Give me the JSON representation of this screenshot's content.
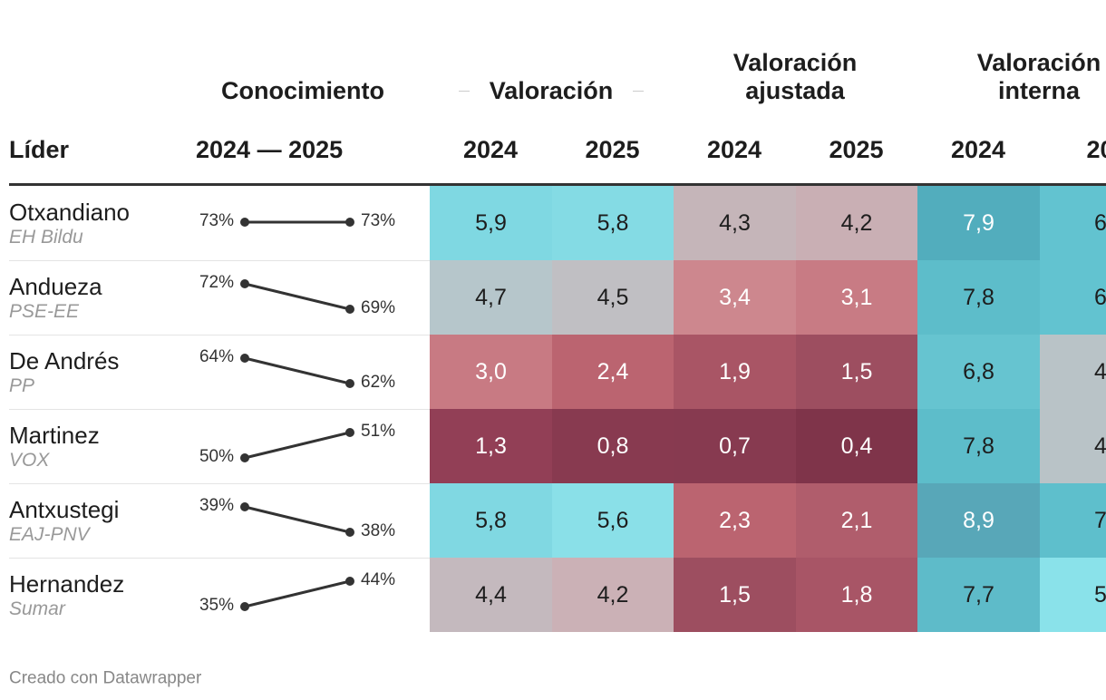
{
  "header": {
    "leader": "Líder",
    "knowledge": "Conocimiento",
    "knowledge_years": "2024 — 2025",
    "groups": [
      "Valoración",
      "Valoración ajustada",
      "Valoración interna"
    ],
    "years": [
      "2024",
      "2025",
      "2024",
      "2025",
      "2024",
      "20"
    ]
  },
  "rows": [
    {
      "leader": "Otxandiano",
      "party": "EH Bildu",
      "knowledge": {
        "values": [
          73,
          73
        ],
        "value_labels": [
          "73%",
          "73%"
        ]
      },
      "cells": [
        "5,9",
        "5,8",
        "4,3",
        "4,2",
        "7,9",
        "6"
      ],
      "colors": [
        "#7fd8e2",
        "#84dbe4",
        "#c5b5b9",
        "#c9afb4",
        "#52adbd",
        "#62c3d0"
      ]
    },
    {
      "leader": "Andueza",
      "party": "PSE-EE",
      "knowledge": {
        "values": [
          72,
          69
        ],
        "value_labels": [
          "72%",
          "69%"
        ]
      },
      "cells": [
        "4,7",
        "4,5",
        "3,4",
        "3,1",
        "7,8",
        "6"
      ],
      "colors": [
        "#b6c6cb",
        "#c0bfc3",
        "#cd878e",
        "#c87b84",
        "#5dbdca",
        "#62c3d0"
      ]
    },
    {
      "leader": "De Andrés",
      "party": "PP",
      "knowledge": {
        "values": [
          64,
          62
        ],
        "value_labels": [
          "64%",
          "62%"
        ]
      },
      "cells": [
        "3,0",
        "2,4",
        "1,9",
        "1,5",
        "6,8",
        "4"
      ],
      "colors": [
        "#c87a83",
        "#bb6470",
        "#a95565",
        "#9d4e60",
        "#66c4d0",
        "#b9c3c7"
      ]
    },
    {
      "leader": "Martinez",
      "party": "VOX",
      "knowledge": {
        "values": [
          50,
          51
        ],
        "value_labels": [
          "50%",
          "51%"
        ]
      },
      "cells": [
        "1,3",
        "0,8",
        "0,7",
        "0,4",
        "7,8",
        "4"
      ],
      "colors": [
        "#923f56",
        "#883a50",
        "#873a50",
        "#7f344a",
        "#5dbdca",
        "#b9c3c7"
      ]
    },
    {
      "leader": "Antxustegi",
      "party": "EAJ-PNV",
      "knowledge": {
        "values": [
          39,
          38
        ],
        "value_labels": [
          "39%",
          "38%"
        ]
      },
      "cells": [
        "5,8",
        "5,6",
        "2,3",
        "2,1",
        "8,9",
        "7"
      ],
      "colors": [
        "#80d8e2",
        "#8ae0e8",
        "#bb6470",
        "#b05d6c",
        "#58a7b8",
        "#5ebfcc"
      ]
    },
    {
      "leader": "Hernandez",
      "party": "Sumar",
      "knowledge": {
        "values": [
          35,
          44
        ],
        "value_labels": [
          "35%",
          "44%"
        ]
      },
      "cells": [
        "4,4",
        "4,2",
        "1,5",
        "1,8",
        "7,7",
        "5"
      ],
      "colors": [
        "#c4b9be",
        "#cbb1b6",
        "#9d4e60",
        "#a85566",
        "#5ebbc9",
        "#8ae2ea"
      ]
    }
  ],
  "footer": "Creado con Datawrapper"
}
